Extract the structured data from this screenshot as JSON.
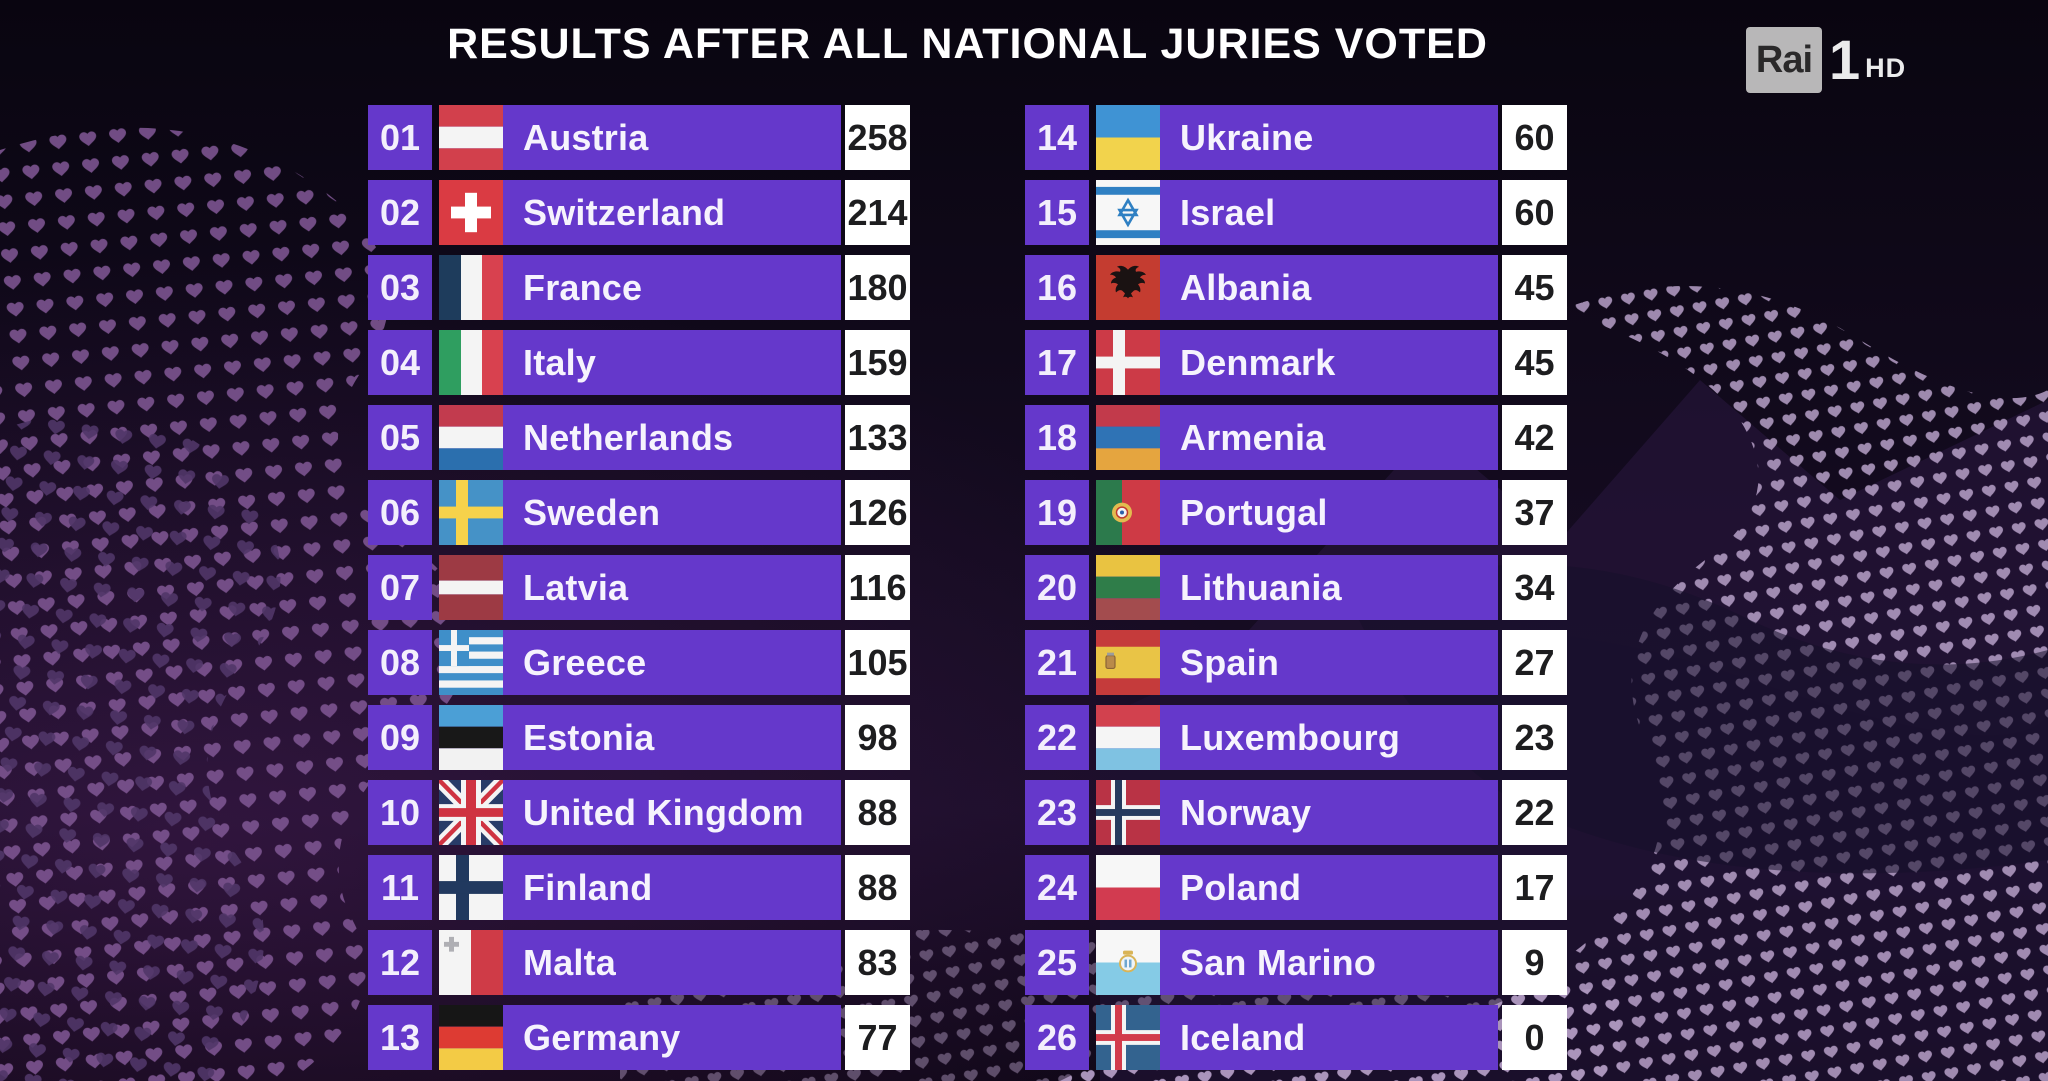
{
  "title": "RESULTS AFTER ALL NATIONAL JURIES VOTED",
  "broadcaster_logo": {
    "brand": "Rai",
    "channel_number": "1",
    "suffix": "HD"
  },
  "colors": {
    "row_purple": "#6538cb",
    "score_box": "#ffffff",
    "score_text": "#1d1d1f",
    "row_text": "#f6f3fd",
    "background_top": "#090510",
    "background_bottom": "#0e0716",
    "heart_dots_left": "#7c5490",
    "heart_dots_right": "#b7a0c8"
  },
  "scoreboard": {
    "left": [
      {
        "rank": "01",
        "country": "Austria",
        "points": "258",
        "flag": "austria"
      },
      {
        "rank": "02",
        "country": "Switzerland",
        "points": "214",
        "flag": "switzerland"
      },
      {
        "rank": "03",
        "country": "France",
        "points": "180",
        "flag": "france"
      },
      {
        "rank": "04",
        "country": "Italy",
        "points": "159",
        "flag": "italy"
      },
      {
        "rank": "05",
        "country": "Netherlands",
        "points": "133",
        "flag": "netherlands"
      },
      {
        "rank": "06",
        "country": "Sweden",
        "points": "126",
        "flag": "sweden"
      },
      {
        "rank": "07",
        "country": "Latvia",
        "points": "116",
        "flag": "latvia"
      },
      {
        "rank": "08",
        "country": "Greece",
        "points": "105",
        "flag": "greece"
      },
      {
        "rank": "09",
        "country": "Estonia",
        "points": "98",
        "flag": "estonia"
      },
      {
        "rank": "10",
        "country": "United Kingdom",
        "points": "88",
        "flag": "united-kingdom"
      },
      {
        "rank": "11",
        "country": "Finland",
        "points": "88",
        "flag": "finland"
      },
      {
        "rank": "12",
        "country": "Malta",
        "points": "83",
        "flag": "malta"
      },
      {
        "rank": "13",
        "country": "Germany",
        "points": "77",
        "flag": "germany"
      }
    ],
    "right": [
      {
        "rank": "14",
        "country": "Ukraine",
        "points": "60",
        "flag": "ukraine"
      },
      {
        "rank": "15",
        "country": "Israel",
        "points": "60",
        "flag": "israel"
      },
      {
        "rank": "16",
        "country": "Albania",
        "points": "45",
        "flag": "albania"
      },
      {
        "rank": "17",
        "country": "Denmark",
        "points": "45",
        "flag": "denmark"
      },
      {
        "rank": "18",
        "country": "Armenia",
        "points": "42",
        "flag": "armenia"
      },
      {
        "rank": "19",
        "country": "Portugal",
        "points": "37",
        "flag": "portugal"
      },
      {
        "rank": "20",
        "country": "Lithuania",
        "points": "34",
        "flag": "lithuania"
      },
      {
        "rank": "21",
        "country": "Spain",
        "points": "27",
        "flag": "spain"
      },
      {
        "rank": "22",
        "country": "Luxembourg",
        "points": "23",
        "flag": "luxembourg"
      },
      {
        "rank": "23",
        "country": "Norway",
        "points": "22",
        "flag": "norway"
      },
      {
        "rank": "24",
        "country": "Poland",
        "points": "17",
        "flag": "poland"
      },
      {
        "rank": "25",
        "country": "San Marino",
        "points": "9",
        "flag": "san-marino"
      },
      {
        "rank": "26",
        "country": "Iceland",
        "points": "0",
        "flag": "iceland"
      }
    ]
  }
}
